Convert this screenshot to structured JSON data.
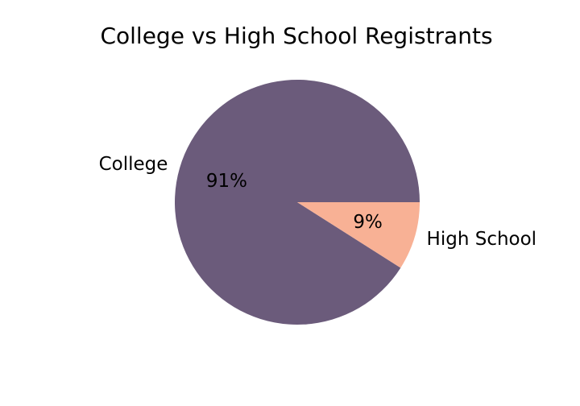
{
  "chart_data": {
    "type": "pie",
    "title": "College vs High School Registrants",
    "categories": [
      "College",
      "High School"
    ],
    "values": [
      91,
      9
    ],
    "percent_labels": [
      "91%",
      "9%"
    ],
    "colors": [
      "#6b5b7b",
      "#f8b195"
    ],
    "start_angle_deg": 0,
    "direction": "counterclockwise",
    "legend": "none"
  }
}
